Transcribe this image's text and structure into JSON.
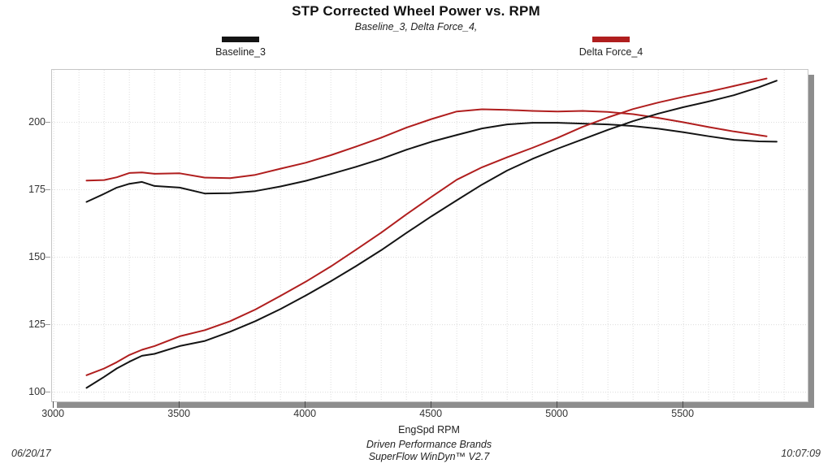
{
  "title": "STP Corrected Wheel Power vs. RPM",
  "subtitle": "Baseline_3, Delta Force_4,",
  "legend": [
    {
      "label": "Baseline_3",
      "color": "#141414"
    },
    {
      "label": "Delta Force_4",
      "color": "#b01e1e"
    }
  ],
  "footer": {
    "brand_line": "Driven Performance Brands",
    "software_line": "SuperFlow WinDyn™ V2.7",
    "date": "06/20/17",
    "time": "10:07:09"
  },
  "chart_data": {
    "type": "line",
    "title": "STP Corrected Wheel Power vs. RPM",
    "subtitle": "Baseline_3, Delta Force_4,",
    "xlabel": "EngSpd  RPM",
    "ylabel": "",
    "xlim": [
      2993,
      5993
    ],
    "ylim": [
      96.6,
      219.4
    ],
    "x_ticks": [
      3000,
      3500,
      4000,
      4500,
      5000,
      5500
    ],
    "y_ticks": [
      100,
      125,
      150,
      175,
      200
    ],
    "x_minor_grid_step": 100,
    "grid": "dotted",
    "legend_position": "top",
    "grid_color": "#dcdcdc",
    "series": [
      {
        "name": "Baseline_3 upper curve (torque trace)",
        "color": "#141414",
        "x": [
          3130,
          3200,
          3250,
          3300,
          3350,
          3400,
          3500,
          3600,
          3700,
          3800,
          3900,
          4000,
          4100,
          4200,
          4300,
          4400,
          4500,
          4600,
          4700,
          4800,
          4900,
          5000,
          5100,
          5200,
          5300,
          5400,
          5500,
          5600,
          5700,
          5800,
          5870
        ],
        "y": [
          170.5,
          173.5,
          175.8,
          177.2,
          177.9,
          176.4,
          175.8,
          173.6,
          173.7,
          174.5,
          176.2,
          178.3,
          180.8,
          183.5,
          186.4,
          189.8,
          192.8,
          195.3,
          197.7,
          199.2,
          199.8,
          199.8,
          199.5,
          199.2,
          198.6,
          197.6,
          196.3,
          194.8,
          193.5,
          192.9,
          192.8
        ]
      },
      {
        "name": "Delta Force_4 upper curve (torque trace)",
        "color": "#b01e1e",
        "x": [
          3130,
          3200,
          3250,
          3300,
          3350,
          3400,
          3500,
          3600,
          3700,
          3800,
          3900,
          4000,
          4100,
          4200,
          4300,
          4400,
          4500,
          4600,
          4700,
          4800,
          4900,
          5000,
          5100,
          5200,
          5300,
          5400,
          5500,
          5600,
          5700,
          5830
        ],
        "y": [
          178.4,
          178.6,
          179.6,
          181.2,
          181.4,
          180.9,
          181.1,
          179.5,
          179.3,
          180.5,
          182.8,
          185.0,
          187.8,
          191.0,
          194.3,
          198.0,
          201.2,
          204.0,
          204.8,
          204.6,
          204.2,
          204.0,
          204.2,
          203.8,
          203.0,
          201.6,
          200.0,
          198.2,
          196.6,
          194.8
        ]
      },
      {
        "name": "Baseline_3 lower curve (power trace)",
        "color": "#141414",
        "x": [
          3130,
          3200,
          3250,
          3300,
          3350,
          3400,
          3500,
          3600,
          3700,
          3800,
          3900,
          4000,
          4100,
          4200,
          4300,
          4400,
          4500,
          4600,
          4700,
          4800,
          4900,
          5000,
          5100,
          5200,
          5300,
          5400,
          5500,
          5600,
          5700,
          5800,
          5870
        ],
        "y": [
          101.6,
          105.7,
          108.8,
          111.3,
          113.5,
          114.2,
          117.1,
          119.0,
          122.4,
          126.3,
          130.8,
          135.8,
          141.1,
          146.7,
          152.6,
          159.0,
          165.2,
          171.1,
          176.9,
          182.1,
          186.4,
          190.2,
          193.7,
          197.2,
          200.4,
          203.2,
          205.6,
          207.7,
          210.0,
          213.0,
          215.4
        ]
      },
      {
        "name": "Delta Force_4 lower curve (power trace)",
        "color": "#b01e1e",
        "x": [
          3130,
          3200,
          3250,
          3300,
          3350,
          3400,
          3500,
          3600,
          3700,
          3800,
          3900,
          4000,
          4100,
          4200,
          4300,
          4400,
          4500,
          4600,
          4700,
          4800,
          4900,
          5000,
          5100,
          5200,
          5300,
          5400,
          5500,
          5600,
          5700,
          5830
        ],
        "y": [
          106.3,
          108.8,
          111.1,
          113.8,
          115.7,
          117.1,
          120.7,
          123.0,
          126.3,
          130.6,
          135.7,
          140.9,
          146.6,
          152.8,
          159.1,
          165.9,
          172.4,
          178.7,
          183.3,
          187.0,
          190.5,
          194.2,
          198.3,
          201.8,
          204.9,
          207.3,
          209.4,
          211.3,
          213.4,
          216.2
        ]
      }
    ]
  }
}
